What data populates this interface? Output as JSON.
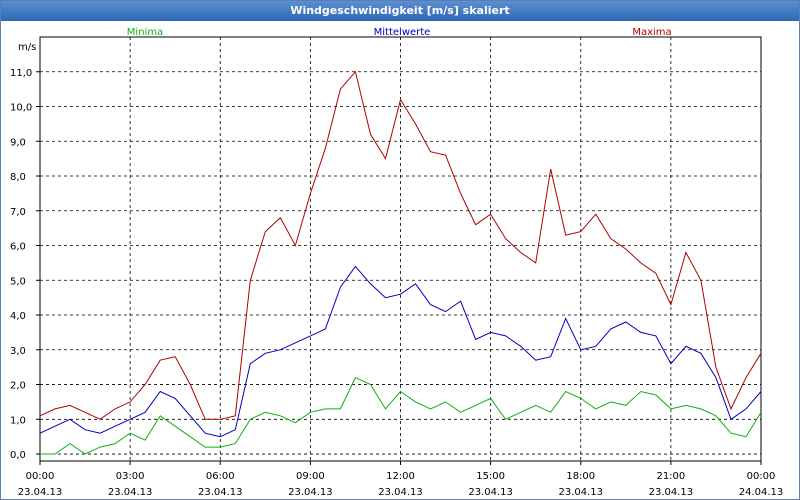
{
  "window": {
    "title": "Windgeschwindigkeit [m/s] skaliert"
  },
  "chart_data": {
    "type": "line",
    "title": "Windgeschwindigkeit [m/s] skaliert",
    "ylabel": "m/s",
    "ylim": [
      -0.2,
      12.0
    ],
    "yticks": [
      "0,0",
      "1,0",
      "2,0",
      "3,0",
      "4,0",
      "5,0",
      "6,0",
      "7,0",
      "8,0",
      "9,0",
      "10,0",
      "11,0"
    ],
    "xticks": [
      {
        "time": "00:00",
        "date": "23.04.13"
      },
      {
        "time": "03:00",
        "date": "23.04.13"
      },
      {
        "time": "06:00",
        "date": "23.04.13"
      },
      {
        "time": "09:00",
        "date": "23.04.13"
      },
      {
        "time": "12:00",
        "date": "23.04.13"
      },
      {
        "time": "15:00",
        "date": "23.04.13"
      },
      {
        "time": "18:00",
        "date": "23.04.13"
      },
      {
        "time": "21:00",
        "date": "23.04.13"
      },
      {
        "time": "00:00",
        "date": "24.04.13"
      }
    ],
    "x_hours": [
      0,
      0.5,
      1,
      1.5,
      2,
      2.5,
      3,
      3.5,
      4,
      4.5,
      5,
      5.5,
      6,
      6.5,
      7,
      7.5,
      8,
      8.5,
      9,
      9.5,
      10,
      10.5,
      11,
      11.5,
      12,
      12.5,
      13,
      13.5,
      14,
      14.5,
      15,
      15.5,
      16,
      16.5,
      17,
      17.5,
      18,
      18.5,
      19,
      19.5,
      20,
      20.5,
      21,
      21.5,
      22,
      22.5,
      23,
      23.5,
      24
    ],
    "series": [
      {
        "name": "Minima",
        "color": "#10b010",
        "values": [
          0.0,
          0.0,
          0.3,
          0.0,
          0.2,
          0.3,
          0.6,
          0.4,
          1.1,
          0.8,
          0.5,
          0.2,
          0.2,
          0.3,
          1.0,
          1.2,
          1.1,
          0.9,
          1.2,
          1.3,
          1.3,
          2.2,
          2.0,
          1.3,
          1.8,
          1.5,
          1.3,
          1.5,
          1.2,
          1.4,
          1.6,
          1.0,
          1.2,
          1.4,
          1.2,
          1.8,
          1.6,
          1.3,
          1.5,
          1.4,
          1.8,
          1.7,
          1.3,
          1.4,
          1.3,
          1.1,
          0.6,
          0.5,
          1.2
        ]
      },
      {
        "name": "Mittelwerte",
        "color": "#0000c0",
        "values": [
          0.6,
          0.8,
          1.0,
          0.7,
          0.6,
          0.8,
          1.0,
          1.2,
          1.8,
          1.6,
          1.1,
          0.6,
          0.5,
          0.7,
          2.6,
          2.9,
          3.0,
          3.2,
          3.4,
          3.6,
          4.8,
          5.4,
          4.9,
          4.5,
          4.6,
          4.9,
          4.3,
          4.1,
          4.4,
          3.3,
          3.5,
          3.4,
          3.1,
          2.7,
          2.8,
          3.9,
          3.0,
          3.1,
          3.6,
          3.8,
          3.5,
          3.4,
          2.6,
          3.1,
          2.9,
          2.2,
          1.0,
          1.3,
          1.8
        ]
      },
      {
        "name": "Maxima",
        "color": "#b00000",
        "values": [
          1.1,
          1.3,
          1.4,
          1.2,
          1.0,
          1.3,
          1.5,
          2.0,
          2.7,
          2.8,
          2.0,
          1.0,
          1.0,
          1.1,
          5.0,
          6.4,
          6.8,
          6.0,
          7.5,
          8.8,
          10.5,
          11.0,
          9.2,
          8.5,
          10.2,
          9.5,
          8.7,
          8.6,
          7.5,
          6.6,
          6.9,
          6.2,
          5.8,
          5.5,
          8.2,
          6.3,
          6.4,
          6.9,
          6.2,
          5.9,
          5.5,
          5.2,
          4.3,
          5.8,
          5.0,
          2.5,
          1.3,
          2.2,
          2.9
        ]
      }
    ]
  }
}
